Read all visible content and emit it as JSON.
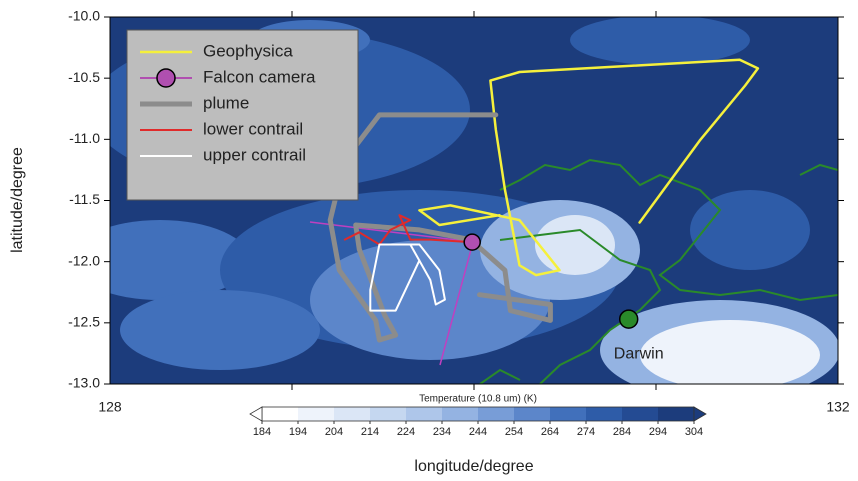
{
  "chart_data": {
    "type": "map",
    "xlabel": "longitude/degree",
    "ylabel": "latitude/degree",
    "xlim": [
      128,
      132
    ],
    "ylim": [
      -13,
      -10
    ],
    "xticks": [
      128,
      132
    ],
    "xminorticks": [
      129,
      130,
      131
    ],
    "yticks": [
      {
        "value": -10,
        "label": "-10.0"
      },
      {
        "value": -10.5,
        "label": "-10.5"
      },
      {
        "value": -11,
        "label": "-11.0"
      },
      {
        "value": -11.5,
        "label": "-11.5"
      },
      {
        "value": -12,
        "label": "-12.0"
      },
      {
        "value": -12.5,
        "label": "-12.5"
      },
      {
        "value": -13,
        "label": "-13.0"
      }
    ],
    "series": [
      {
        "name": "Geophysica",
        "color": "#f5f03c",
        "width": 2.5,
        "x": [
          130.91,
          131.24,
          131.49,
          131.56,
          131.46,
          130.25,
          130.09,
          130.12,
          130.17,
          130.25,
          130.34,
          130.47,
          130.25,
          129.87,
          129.7,
          129.81,
          130.14
        ],
        "y": [
          -11.68,
          -11.01,
          -10.56,
          -10.42,
          -10.35,
          -10.45,
          -10.52,
          -10.92,
          -11.41,
          -12.03,
          -12.11,
          -12.07,
          -11.66,
          -11.54,
          -11.58,
          -11.7,
          -11.62
        ]
      },
      {
        "name": "Falcon camera",
        "color": "#b04fb0",
        "marker": true,
        "x": [
          129.99
        ],
        "y": [
          -11.84
        ]
      },
      {
        "name": "plume",
        "color": "#8c8c8c",
        "width": 5,
        "x": [
          130.12,
          129.48,
          129.29,
          129.21,
          129.26,
          129.46,
          129.48,
          129.57,
          129.51,
          129.37,
          129.35,
          129.7,
          129.98,
          130.17,
          130.2,
          130.42,
          130.42,
          130.03
        ],
        "y": [
          -10.8,
          -10.8,
          -11.17,
          -11.66,
          -12.07,
          -12.48,
          -12.64,
          -12.6,
          -12.44,
          -11.9,
          -11.7,
          -11.74,
          -11.82,
          -12.07,
          -12.4,
          -12.48,
          -12.35,
          -12.27
        ]
      },
      {
        "name": "lower contrail",
        "color": "#e02a2a",
        "width": 2,
        "x": [
          129.29,
          129.37,
          129.48,
          129.54,
          129.65,
          129.59,
          129.65,
          129.76,
          129.98
        ],
        "y": [
          -11.82,
          -11.76,
          -11.86,
          -11.74,
          -11.66,
          -11.62,
          -11.82,
          -11.82,
          -11.84
        ]
      },
      {
        "name": "upper contrail",
        "color": "#ffffff",
        "width": 2,
        "x": [
          129.65,
          129.76,
          129.79,
          129.84,
          129.81,
          129.7,
          129.48,
          129.43,
          129.43,
          129.57,
          129.7
        ],
        "y": [
          -11.86,
          -12.15,
          -12.35,
          -12.31,
          -12.07,
          -11.86,
          -11.86,
          -12.23,
          -12.4,
          -12.4,
          -11.99
        ]
      }
    ],
    "annotations": [
      {
        "text": "Darwin",
        "x": 130.85,
        "y": -12.47,
        "color": "#2a8a2a"
      }
    ],
    "colorbar": {
      "title": "Temperature (10.8 um) (K)",
      "ticks": [
        184,
        194,
        204,
        214,
        224,
        234,
        244,
        254,
        264,
        274,
        284,
        294,
        304
      ],
      "colors": [
        "#ffffff",
        "#eef3fb",
        "#dbe6f6",
        "#c5d7f0",
        "#aec6ea",
        "#94b3e2",
        "#789dd7",
        "#5c86ca",
        "#4170bb",
        "#2e5ca8",
        "#244b93",
        "#1c3c7c"
      ]
    }
  }
}
